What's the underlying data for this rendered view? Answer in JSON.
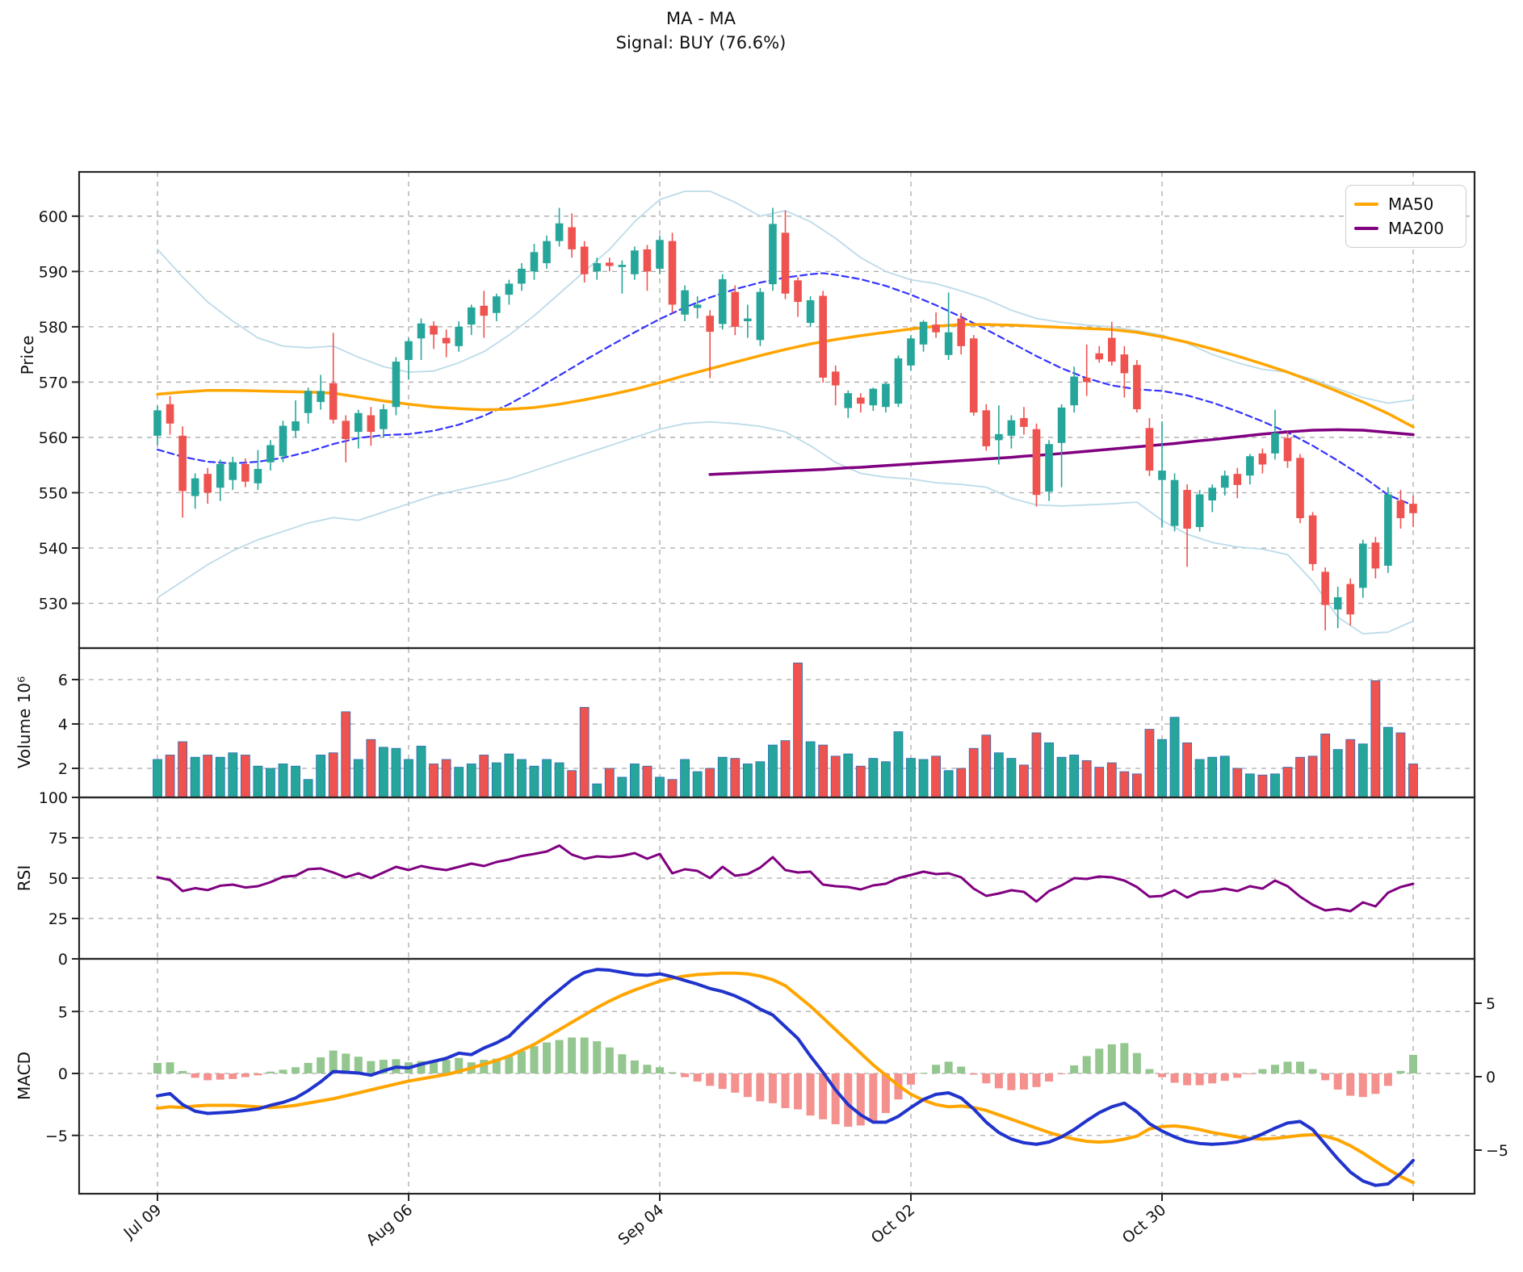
{
  "title": {
    "line1": "MA - MA",
    "line2": "Signal: BUY (76.6%)"
  },
  "legend": [
    {
      "label": "MA50",
      "color": "#FFA500"
    },
    {
      "label": "MA200",
      "color": "#800080"
    }
  ],
  "axes": {
    "price_label": "Price",
    "volume_label": "Volume  10⁶",
    "rsi_label": "RSI",
    "macd_label": "MACD",
    "price_ticks": [
      600,
      590,
      580,
      570,
      560,
      550,
      540,
      530
    ],
    "volume_ticks": [
      6,
      4,
      2
    ],
    "rsi_ticks": [
      100,
      75,
      50,
      25,
      0
    ],
    "macd_ticks_left": [
      5,
      0,
      -5
    ],
    "macd_ticks_right": [
      5,
      0,
      -5
    ],
    "x_ticks": [
      {
        "i": 0,
        "label": "Jul 09"
      },
      {
        "i": 20,
        "label": "Aug 06"
      },
      {
        "i": 40,
        "label": "Sep 04"
      },
      {
        "i": 60,
        "label": "Oct 02"
      },
      {
        "i": 80,
        "label": "Oct 30"
      },
      {
        "i": 100,
        "label": ""
      }
    ]
  },
  "colors": {
    "up": "#26a69a",
    "down": "#ef5350",
    "ma50": "#FFA500",
    "ma200": "#800080",
    "ma20": "#3333ff",
    "bband": "#bcdbe8",
    "macd_line": "#2033cc",
    "signal_line": "#FFA500",
    "hist_up": "#94c68f",
    "hist_down": "#f4918e",
    "rsi_line": "#800080",
    "grid": "#aaaaaa",
    "border": "#262626",
    "text": "#111111"
  },
  "chart_data": {
    "type": "candlestick-multi-panel",
    "panels": [
      "Price with MA50/MA200/MA20(dashed)/Bollinger bands",
      "Volume x10^6",
      "RSI",
      "MACD (histogram left scale, lines right scale)"
    ],
    "open": [
      560.3,
      566.0,
      560.3,
      549.4,
      553.4,
      550.9,
      552.3,
      555.2,
      551.7,
      555.5,
      556.6,
      561.2,
      564.4,
      566.4,
      569.8,
      563.0,
      561.0,
      564.0,
      561.5,
      565.5,
      574.0,
      577.9,
      580.2,
      578.0,
      576.5,
      580.4,
      583.8,
      582.5,
      585.8,
      587.8,
      590.0,
      591.5,
      595.5,
      598.0,
      594.5,
      590.0,
      591.6,
      590.8,
      589.5,
      594.0,
      590.5,
      595.5,
      582.2,
      583.4,
      582.0,
      580.5,
      586.3,
      581.0,
      577.6,
      587.7,
      597.0,
      588.4,
      580.7,
      585.6,
      571.9,
      565.3,
      567.2,
      565.8,
      565.5,
      566.1,
      573.0,
      576.8,
      580.4,
      574.9,
      581.5,
      577.9,
      564.9,
      559.5,
      560.3,
      563.5,
      561.5,
      550.2,
      559.0,
      565.8,
      570.8,
      575.2,
      578.0,
      575.0,
      573.1,
      561.7,
      552.3,
      544.0,
      550.5,
      543.8,
      548.6,
      550.9,
      553.4,
      553.1,
      557.1,
      557.1,
      559.9,
      556.3,
      545.9,
      535.7,
      528.9,
      533.5,
      532.8,
      541.0,
      536.8,
      548.6,
      548.0
    ],
    "high": [
      565.7,
      567.5,
      562.0,
      553.5,
      554.5,
      556.0,
      556.5,
      556.2,
      557.7,
      559.5,
      563.0,
      566.7,
      569.0,
      571.3,
      578.9,
      564.0,
      565.0,
      565.5,
      566.0,
      574.5,
      578.0,
      581.5,
      581.0,
      579.5,
      581.0,
      584.0,
      586.5,
      586.0,
      588.5,
      591.5,
      595.0,
      596.5,
      601.5,
      600.5,
      595.5,
      592.5,
      592.5,
      592.0,
      594.5,
      594.8,
      596.5,
      597.0,
      587.5,
      585.5,
      583.0,
      589.5,
      587.5,
      584.0,
      587.0,
      601.5,
      601.0,
      589.0,
      585.5,
      586.5,
      573.0,
      568.5,
      568.0,
      569.0,
      570.0,
      574.8,
      578.5,
      581.2,
      582.6,
      586.2,
      582.5,
      578.5,
      566.0,
      565.8,
      564.0,
      565.5,
      562.5,
      559.5,
      566.0,
      572.8,
      576.8,
      576.5,
      580.9,
      576.5,
      574.0,
      563.5,
      562.9,
      553.5,
      551.5,
      550.5,
      551.5,
      554.0,
      554.5,
      557.0,
      558.0,
      565.0,
      561.0,
      557.0,
      546.5,
      536.5,
      533.0,
      534.5,
      541.5,
      542.0,
      551.0,
      550.5,
      549.5
    ],
    "low": [
      558.6,
      560.5,
      545.5,
      547.1,
      548.0,
      548.5,
      550.5,
      551.0,
      550.5,
      554.0,
      555.5,
      560.0,
      562.5,
      565.0,
      562.5,
      555.5,
      558.0,
      558.5,
      560.0,
      564.0,
      570.5,
      574.0,
      576.0,
      574.5,
      575.5,
      578.5,
      578.0,
      581.0,
      584.0,
      586.5,
      588.5,
      590.5,
      594.5,
      592.5,
      588.0,
      588.5,
      590.0,
      586.0,
      588.5,
      586.5,
      589.5,
      582.5,
      581.0,
      581.5,
      570.7,
      579.5,
      578.5,
      578.0,
      576.5,
      586.5,
      585.0,
      581.8,
      580.0,
      569.9,
      565.8,
      563.5,
      564.5,
      564.8,
      564.5,
      565.5,
      572.0,
      575.5,
      578.0,
      574.0,
      575.0,
      563.9,
      557.6,
      555.1,
      558.0,
      560.5,
      547.5,
      548.5,
      551.0,
      564.5,
      567.5,
      573.5,
      573.0,
      567.2,
      564.5,
      553.0,
      543.7,
      543.0,
      536.6,
      543.0,
      546.5,
      549.5,
      549.0,
      551.5,
      553.5,
      556.0,
      554.5,
      544.5,
      535.9,
      525.1,
      525.5,
      526.0,
      531.0,
      534.5,
      535.5,
      543.5,
      543.8
    ],
    "close": [
      564.9,
      562.5,
      550.3,
      552.6,
      550.0,
      555.2,
      555.5,
      552.0,
      554.3,
      558.6,
      562.1,
      562.9,
      568.4,
      568.4,
      563.2,
      559.7,
      564.4,
      561.0,
      565.1,
      573.7,
      577.4,
      580.6,
      578.6,
      577.0,
      580.0,
      583.5,
      582.0,
      585.5,
      587.8,
      590.5,
      593.5,
      595.5,
      598.7,
      594.0,
      589.5,
      591.5,
      591.0,
      591.2,
      593.8,
      590.0,
      595.7,
      584.0,
      586.6,
      584.0,
      579.1,
      588.6,
      580.0,
      581.5,
      586.3,
      598.6,
      586.0,
      584.5,
      584.8,
      570.8,
      569.4,
      568.0,
      566.1,
      568.8,
      569.7,
      574.3,
      577.9,
      580.9,
      579.0,
      579.0,
      576.5,
      564.5,
      558.4,
      560.6,
      563.1,
      561.9,
      549.6,
      558.8,
      565.4,
      571.0,
      570.0,
      574.1,
      573.7,
      571.6,
      565.1,
      554.0,
      554.0,
      552.3,
      543.5,
      549.7,
      550.9,
      553.1,
      551.4,
      556.6,
      555.1,
      560.8,
      555.7,
      545.4,
      537.1,
      529.7,
      531.1,
      528.0,
      540.8,
      536.3,
      549.7,
      545.4,
      546.3
    ],
    "volume": [
      2.4,
      2.6,
      3.2,
      2.5,
      2.6,
      2.5,
      2.7,
      2.6,
      2.1,
      2.0,
      2.2,
      2.1,
      1.5,
      2.6,
      2.7,
      4.55,
      2.4,
      3.3,
      2.95,
      2.9,
      2.4,
      3.0,
      2.2,
      2.4,
      2.05,
      2.2,
      2.6,
      2.25,
      2.65,
      2.4,
      2.1,
      2.4,
      2.25,
      1.9,
      4.75,
      1.3,
      2.0,
      1.6,
      2.2,
      2.1,
      1.6,
      1.5,
      2.4,
      1.85,
      2.0,
      2.5,
      2.45,
      2.2,
      2.3,
      3.05,
      3.25,
      6.75,
      3.2,
      3.05,
      2.55,
      2.65,
      2.1,
      2.45,
      2.3,
      3.65,
      2.45,
      2.4,
      2.55,
      1.9,
      2.0,
      2.9,
      3.5,
      2.7,
      2.45,
      2.15,
      3.6,
      3.15,
      2.5,
      2.6,
      2.35,
      2.05,
      2.25,
      1.85,
      1.75,
      3.76,
      3.3,
      4.3,
      3.15,
      2.4,
      2.5,
      2.55,
      2.0,
      1.75,
      1.7,
      1.75,
      2.05,
      2.5,
      2.55,
      3.55,
      2.85,
      3.3,
      3.1,
      5.95,
      3.85,
      3.6,
      2.2
    ],
    "rsi": [
      50.5,
      48.8,
      42.0,
      43.8,
      42.6,
      45.3,
      46.0,
      44.2,
      45.0,
      47.5,
      50.8,
      51.5,
      55.5,
      56.0,
      53.5,
      50.5,
      53.0,
      50.0,
      53.5,
      57.0,
      55.0,
      57.5,
      56.0,
      55.0,
      57.0,
      59.0,
      57.5,
      60.0,
      61.5,
      63.7,
      65.0,
      66.5,
      70.2,
      64.6,
      62.0,
      63.5,
      63.0,
      63.8,
      65.5,
      62.0,
      65.0,
      53.0,
      55.5,
      54.5,
      50.0,
      57.0,
      51.5,
      52.5,
      56.5,
      63.0,
      55.0,
      53.5,
      54.0,
      46.0,
      45.0,
      44.5,
      43.0,
      45.5,
      46.5,
      50.0,
      52.0,
      54.0,
      52.5,
      53.0,
      50.5,
      43.5,
      39.0,
      40.5,
      42.5,
      41.5,
      35.5,
      42.0,
      45.5,
      50.0,
      49.5,
      51.0,
      50.5,
      48.5,
      44.5,
      38.5,
      39.0,
      42.5,
      38.0,
      41.5,
      42.0,
      43.5,
      42.0,
      45.0,
      43.5,
      48.5,
      45.0,
      38.5,
      33.5,
      30.0,
      31.0,
      29.5,
      35.0,
      32.5,
      41.0,
      44.5,
      46.5
    ],
    "macd": [
      -1.3,
      -1.15,
      -1.9,
      -2.35,
      -2.5,
      -2.45,
      -2.4,
      -2.3,
      -2.2,
      -1.95,
      -1.75,
      -1.45,
      -0.95,
      -0.35,
      0.35,
      0.3,
      0.25,
      0.1,
      0.4,
      0.65,
      0.6,
      0.85,
      1.05,
      1.25,
      1.6,
      1.5,
      1.95,
      2.3,
      2.75,
      3.6,
      4.4,
      5.2,
      5.9,
      6.6,
      7.1,
      7.3,
      7.25,
      7.1,
      6.95,
      6.9,
      7.0,
      6.8,
      6.55,
      6.3,
      6.0,
      5.8,
      5.5,
      5.1,
      4.6,
      4.2,
      3.4,
      2.6,
      1.4,
      0.3,
      -0.9,
      -1.9,
      -2.6,
      -3.1,
      -3.1,
      -2.7,
      -2.1,
      -1.55,
      -1.2,
      -1.1,
      -1.45,
      -2.2,
      -3.1,
      -3.8,
      -4.25,
      -4.5,
      -4.6,
      -4.45,
      -4.1,
      -3.6,
      -3.0,
      -2.45,
      -2.05,
      -1.8,
      -2.4,
      -3.2,
      -3.7,
      -4.1,
      -4.4,
      -4.55,
      -4.6,
      -4.55,
      -4.45,
      -4.25,
      -3.9,
      -3.5,
      -3.15,
      -3.05,
      -3.6,
      -4.6,
      -5.6,
      -6.5,
      -7.1,
      -7.4,
      -7.3,
      -6.6,
      -5.7
    ],
    "signal": [
      -2.15,
      -2.05,
      -2.1,
      -2.0,
      -1.95,
      -1.95,
      -1.95,
      -2.0,
      -2.05,
      -2.1,
      -2.05,
      -1.95,
      -1.8,
      -1.65,
      -1.5,
      -1.3,
      -1.1,
      -0.9,
      -0.7,
      -0.5,
      -0.3,
      -0.15,
      0.0,
      0.15,
      0.35,
      0.6,
      0.85,
      1.1,
      1.4,
      1.8,
      2.2,
      2.7,
      3.2,
      3.7,
      4.2,
      4.7,
      5.15,
      5.55,
      5.9,
      6.2,
      6.5,
      6.7,
      6.85,
      6.95,
      7.0,
      7.05,
      7.05,
      7.0,
      6.85,
      6.6,
      6.2,
      5.5,
      4.8,
      4.0,
      3.2,
      2.4,
      1.6,
      0.8,
      0.1,
      -0.6,
      -1.2,
      -1.6,
      -1.9,
      -2.05,
      -2.0,
      -2.1,
      -2.3,
      -2.6,
      -2.9,
      -3.2,
      -3.5,
      -3.8,
      -4.05,
      -4.25,
      -4.4,
      -4.45,
      -4.4,
      -4.25,
      -4.05,
      -3.55,
      -3.4,
      -3.35,
      -3.45,
      -3.6,
      -3.8,
      -3.95,
      -4.1,
      -4.2,
      -4.25,
      -4.2,
      -4.1,
      -4.0,
      -3.95,
      -4.05,
      -4.3,
      -4.7,
      -5.2,
      -5.75,
      -6.3,
      -6.8,
      -7.2
    ],
    "ma50": [
      567.8,
      568.0,
      568.2,
      568.35,
      568.5,
      568.5,
      568.5,
      568.45,
      568.4,
      568.35,
      568.3,
      568.25,
      568.2,
      568.1,
      568.0,
      567.65,
      567.3,
      566.95,
      566.6,
      566.3,
      566.0,
      565.75,
      565.5,
      565.35,
      565.2,
      565.1,
      565.0,
      565.05,
      565.1,
      565.25,
      565.4,
      565.7,
      566.0,
      566.4,
      566.8,
      567.25,
      567.7,
      568.2,
      568.7,
      569.3,
      569.9,
      570.55,
      571.2,
      571.8,
      572.4,
      573.0,
      573.6,
      574.2,
      574.8,
      575.35,
      575.9,
      576.4,
      576.9,
      577.3,
      577.7,
      578.05,
      578.4,
      578.7,
      579.0,
      579.3,
      579.6,
      579.85,
      580.1,
      580.25,
      580.4,
      580.4,
      580.4,
      580.35,
      580.3,
      580.2,
      580.1,
      580.0,
      579.9,
      579.8,
      579.7,
      579.6,
      579.5,
      579.25,
      579.0,
      578.6,
      578.2,
      577.7,
      577.2,
      576.6,
      576.0,
      575.35,
      574.7,
      574.0,
      573.3,
      572.55,
      571.8,
      570.95,
      570.1,
      569.2,
      568.3,
      567.35,
      566.4,
      565.35,
      564.3,
      563.1,
      561.9
    ],
    "ma200": [
      null,
      null,
      null,
      null,
      null,
      null,
      null,
      null,
      null,
      null,
      null,
      null,
      null,
      null,
      null,
      null,
      null,
      null,
      null,
      null,
      null,
      null,
      null,
      null,
      null,
      null,
      null,
      null,
      null,
      null,
      null,
      null,
      null,
      null,
      null,
      null,
      null,
      null,
      null,
      null,
      null,
      null,
      null,
      null,
      553.3,
      553.4,
      553.5,
      553.6,
      553.7,
      553.8,
      553.9,
      554.0,
      554.1,
      554.2,
      554.35,
      554.5,
      554.6,
      554.75,
      554.9,
      555.05,
      555.2,
      555.35,
      555.5,
      555.65,
      555.8,
      555.95,
      556.1,
      556.25,
      556.4,
      556.6,
      556.75,
      556.9,
      557.1,
      557.3,
      557.5,
      557.7,
      557.9,
      558.1,
      558.3,
      558.5,
      558.7,
      558.9,
      559.15,
      559.4,
      559.6,
      559.85,
      560.1,
      560.35,
      560.6,
      560.8,
      561.0,
      561.15,
      561.3,
      561.35,
      561.4,
      561.35,
      561.3,
      561.1,
      560.9,
      560.7,
      560.5
    ],
    "ma20": [
      557.8,
      557.15,
      556.5,
      556.05,
      555.6,
      555.45,
      555.3,
      555.45,
      555.6,
      555.95,
      556.3,
      556.85,
      557.4,
      558.1,
      558.8,
      559.35,
      559.9,
      560.15,
      560.4,
      560.5,
      560.6,
      560.9,
      561.2,
      561.75,
      562.3,
      563.1,
      563.9,
      564.95,
      566.0,
      567.25,
      568.5,
      569.85,
      571.2,
      572.55,
      573.9,
      575.2,
      576.5,
      577.75,
      579.0,
      580.2,
      581.4,
      582.45,
      583.5,
      584.4,
      585.3,
      586.05,
      586.8,
      587.4,
      588.0,
      588.45,
      588.9,
      589.2,
      589.5,
      589.7,
      589.4,
      589.0,
      588.6,
      588.0,
      587.4,
      586.6,
      585.8,
      584.85,
      583.9,
      582.85,
      581.8,
      580.65,
      579.5,
      578.3,
      577.1,
      575.9,
      574.7,
      573.6,
      572.5,
      571.6,
      570.7,
      570.05,
      569.4,
      569.05,
      568.7,
      568.55,
      568.4,
      568.0,
      567.6,
      566.95,
      566.3,
      565.5,
      564.7,
      563.8,
      562.9,
      561.9,
      560.9,
      559.7,
      558.5,
      557.15,
      555.8,
      554.35,
      552.9,
      551.25,
      549.6,
      548.65,
      547.7
    ],
    "bb_up": [
      594.0,
      591.5,
      589.0,
      586.75,
      584.5,
      582.75,
      581.0,
      579.5,
      578.0,
      577.25,
      576.5,
      576.35,
      576.2,
      576.35,
      576.5,
      575.5,
      574.5,
      573.65,
      572.8,
      572.3,
      571.8,
      571.9,
      572.0,
      572.75,
      573.5,
      574.5,
      575.5,
      577.0,
      578.5,
      580.25,
      582.0,
      584.0,
      586.0,
      588.0,
      590.0,
      592.0,
      594.0,
      596.5,
      599.0,
      601.0,
      603.0,
      603.75,
      604.5,
      604.5,
      604.5,
      603.5,
      602.5,
      601.25,
      600.0,
      600.5,
      601.0,
      600.0,
      599.0,
      597.5,
      596.0,
      594.25,
      592.5,
      591.25,
      590.0,
      589.25,
      588.5,
      588.15,
      587.8,
      587.15,
      586.5,
      585.75,
      585.0,
      584.0,
      583.0,
      582.25,
      581.5,
      581.15,
      580.8,
      580.55,
      580.3,
      580.15,
      580.0,
      579.65,
      579.3,
      578.9,
      578.5,
      577.75,
      577.0,
      576.0,
      575.0,
      574.25,
      573.5,
      572.9,
      572.3,
      572.05,
      571.8,
      571.15,
      570.5,
      569.65,
      568.8,
      568.0,
      567.2,
      566.7,
      566.2,
      566.5,
      566.8
    ],
    "bb_low": [
      531.0,
      532.5,
      534.0,
      535.5,
      537.0,
      538.25,
      539.5,
      540.5,
      541.5,
      542.25,
      543.0,
      543.75,
      544.5,
      545.0,
      545.5,
      545.25,
      545.0,
      545.75,
      546.5,
      547.25,
      548.0,
      548.75,
      549.5,
      550.0,
      550.5,
      551.0,
      551.5,
      552.0,
      552.5,
      553.25,
      554.0,
      554.75,
      555.5,
      556.25,
      557.0,
      557.75,
      558.5,
      559.25,
      560.0,
      560.75,
      561.5,
      562.0,
      562.5,
      562.65,
      562.8,
      562.65,
      562.5,
      562.25,
      562.0,
      561.5,
      561.0,
      559.75,
      558.5,
      557.0,
      555.5,
      554.5,
      553.5,
      553.15,
      552.8,
      552.65,
      552.5,
      552.15,
      551.8,
      551.65,
      551.5,
      551.25,
      551.0,
      550.0,
      549.0,
      548.4,
      547.8,
      547.7,
      547.6,
      547.7,
      547.8,
      547.9,
      548.0,
      548.15,
      548.3,
      546.65,
      545.0,
      543.75,
      542.5,
      541.75,
      541.0,
      540.6,
      540.2,
      540.0,
      539.8,
      539.3,
      538.8,
      536.4,
      534.0,
      530.75,
      527.5,
      526.0,
      524.5,
      524.65,
      524.8,
      525.8,
      526.8
    ]
  }
}
